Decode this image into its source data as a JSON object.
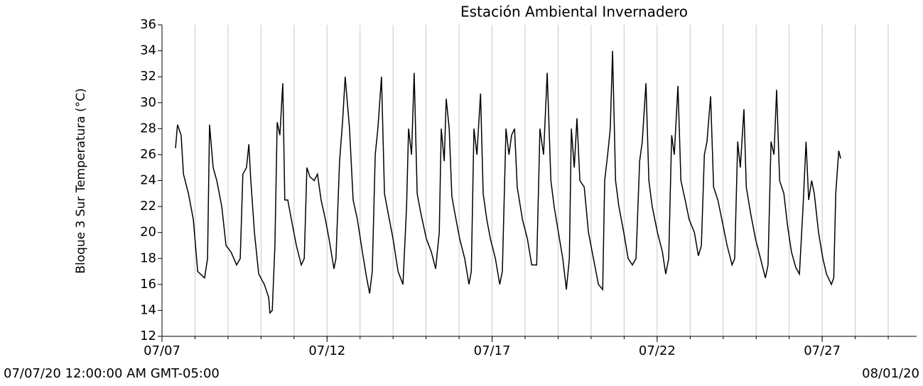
{
  "chart_data": {
    "type": "line",
    "title": "Estación Ambiental Invernadero",
    "y_label": "Bloque 3 Sur Temperatura (°C)",
    "range_start": "07/07/20 12:00:00 AM GMT-05:00",
    "range_end": "08/01/20",
    "color": "#000000",
    "x": [
      0.41,
      0.47,
      0.58,
      0.65,
      0.8,
      0.95,
      1.08,
      1.29,
      1.38,
      1.44,
      1.55,
      1.66,
      1.81,
      1.94,
      2.09,
      2.26,
      2.37,
      2.45,
      2.56,
      2.63,
      2.69,
      2.8,
      2.93,
      3.1,
      3.23,
      3.27,
      3.34,
      3.42,
      3.49,
      3.57,
      3.66,
      3.72,
      3.81,
      3.92,
      4.07,
      4.22,
      4.31,
      4.39,
      4.48,
      4.61,
      4.71,
      4.82,
      4.95,
      5.06,
      5.21,
      5.27,
      5.38,
      5.47,
      5.55,
      5.68,
      5.79,
      5.92,
      6.07,
      6.2,
      6.29,
      6.37,
      6.46,
      6.54,
      6.65,
      6.74,
      6.85,
      7.0,
      7.15,
      7.3,
      7.41,
      7.47,
      7.56,
      7.64,
      7.73,
      7.84,
      8.01,
      8.16,
      8.29,
      8.4,
      8.46,
      8.55,
      8.61,
      8.7,
      8.78,
      8.87,
      9.02,
      9.17,
      9.3,
      9.37,
      9.45,
      9.54,
      9.65,
      9.73,
      9.84,
      9.95,
      10.1,
      10.23,
      10.31,
      10.42,
      10.51,
      10.59,
      10.68,
      10.76,
      10.92,
      11.07,
      11.2,
      11.35,
      11.45,
      11.56,
      11.67,
      11.78,
      11.88,
      12.01,
      12.14,
      12.25,
      12.34,
      12.4,
      12.49,
      12.57,
      12.66,
      12.79,
      12.92,
      13.07,
      13.22,
      13.35,
      13.41,
      13.5,
      13.58,
      13.65,
      13.74,
      13.84,
      13.99,
      14.12,
      14.25,
      14.36,
      14.47,
      14.55,
      14.66,
      14.75,
      14.85,
      15.01,
      15.16,
      15.26,
      15.35,
      15.44,
      15.52,
      15.63,
      15.72,
      15.85,
      15.97,
      16.13,
      16.25,
      16.34,
      16.43,
      16.51,
      16.62,
      16.71,
      16.84,
      16.96,
      17.12,
      17.27,
      17.35,
      17.44,
      17.52,
      17.63,
      17.7,
      17.83,
      17.98,
      18.13,
      18.28,
      18.36,
      18.45,
      18.54,
      18.62,
      18.71,
      18.84,
      18.95,
      19.07,
      19.2,
      19.31,
      19.42,
      19.51,
      19.59,
      19.68,
      19.76,
      19.89,
      20.02,
      20.13,
      20.28,
      20.35,
      20.41,
      20.5,
      20.56
    ],
    "values": [
      26.5,
      28.3,
      27.5,
      24.5,
      23,
      21,
      17,
      16.5,
      18,
      28.3,
      25,
      24,
      22,
      19,
      18.5,
      17.5,
      18,
      24.5,
      25,
      26.8,
      24,
      20,
      16.8,
      16,
      15,
      13.8,
      14,
      19,
      28.5,
      27.5,
      31.5,
      22.5,
      22.5,
      21,
      19,
      17.5,
      18,
      25,
      24.3,
      24,
      24.5,
      22.5,
      21,
      19.5,
      17.2,
      18,
      25.5,
      28.5,
      32,
      28,
      22.5,
      21,
      18.5,
      16.5,
      15.3,
      17,
      26,
      28,
      32,
      23,
      21.5,
      19.5,
      17,
      16,
      22,
      28,
      26,
      32.3,
      23,
      21.5,
      19.5,
      18.5,
      17.2,
      20,
      28,
      25.5,
      30.3,
      28,
      22.8,
      21.5,
      19.5,
      18,
      16,
      17,
      28,
      26,
      30.7,
      23,
      21,
      19.5,
      18,
      16,
      17,
      28,
      26,
      27.5,
      28,
      23.5,
      21,
      19.5,
      17.5,
      17.5,
      28,
      26,
      32.3,
      24,
      22,
      20,
      18,
      15.6,
      18,
      28,
      25,
      28.8,
      24,
      23.5,
      20,
      18,
      16,
      15.6,
      24,
      26,
      28,
      34,
      24,
      22,
      20,
      18,
      17.5,
      18,
      25.5,
      27,
      31.5,
      24,
      22,
      20,
      18.5,
      16.8,
      18,
      27.5,
      26,
      31.3,
      24,
      22.5,
      21,
      20,
      18.2,
      19,
      26,
      27,
      30.5,
      23.5,
      22.5,
      21,
      19,
      17.5,
      18,
      27,
      25,
      29.5,
      23.5,
      21.5,
      19.5,
      18,
      16.5,
      17.5,
      27,
      26,
      31,
      24,
      23,
      20.5,
      18.5,
      17.3,
      16.8,
      22,
      27,
      22.5,
      24,
      23,
      20,
      18,
      16.8,
      16,
      16.5,
      23,
      26.3,
      25.7
    ],
    "xlim": [
      0,
      22.86
    ],
    "xticks": [
      {
        "value": 0,
        "label": "07/07"
      },
      {
        "value": 5,
        "label": "07/12"
      },
      {
        "value": 10,
        "label": "07/17"
      },
      {
        "value": 15,
        "label": "07/22"
      },
      {
        "value": 20,
        "label": "07/27"
      }
    ],
    "xgrid": [
      1,
      2,
      3,
      4,
      5,
      6,
      7,
      8,
      9,
      10,
      11,
      12,
      13,
      14,
      15,
      16,
      17,
      18,
      19,
      20,
      21,
      22
    ],
    "ylim": [
      12,
      36
    ],
    "yticks": [
      12,
      14,
      16,
      18,
      20,
      22,
      24,
      26,
      28,
      30,
      32,
      34,
      36
    ]
  }
}
